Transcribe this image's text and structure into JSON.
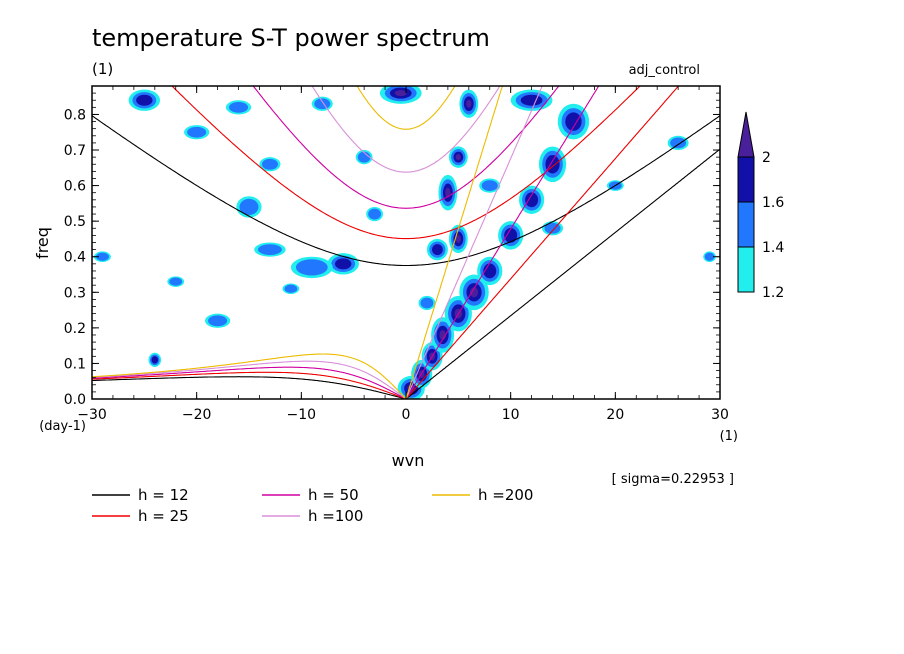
{
  "chart_data": {
    "type": "heatmap",
    "title": "temperature S-T power spectrum",
    "subtitle_left": "(1)",
    "subtitle_right": "adj_control",
    "xlabel": "wvn",
    "ylabel": "freq",
    "x_unit_label": "(1)",
    "y_unit_label": "(day-1)",
    "xlim": [
      -30,
      30
    ],
    "ylim": [
      0,
      0.88
    ],
    "x_ticks": [
      -30,
      -20,
      -10,
      0,
      10,
      20,
      30
    ],
    "x_tick_labels": [
      "−30",
      "−20",
      "−10",
      "0",
      "10",
      "20",
      "30"
    ],
    "y_ticks": [
      0,
      0.1,
      0.2,
      0.3,
      0.4,
      0.5,
      0.6,
      0.7,
      0.8
    ],
    "y_tick_labels": [
      "0.0",
      "0.1",
      "0.2",
      "0.3",
      "0.4",
      "0.5",
      "0.6",
      "0.7",
      "0.8"
    ],
    "sigma_text": "[ sigma=0.22953 ]",
    "colorbar": {
      "levels": [
        1.2,
        1.4,
        1.6,
        2
      ],
      "labels": [
        "1.2",
        "1.4",
        "1.6",
        "2"
      ],
      "colors": [
        "#22eeee",
        "#2277ff",
        "#1111aa",
        "#4a1f9c"
      ]
    },
    "dispersion_curves": [
      {
        "label": "h = 12",
        "h": 12,
        "color": "#000000"
      },
      {
        "label": "h = 25",
        "h": 25,
        "color": "#ee0000"
      },
      {
        "label": "h = 50",
        "h": 50,
        "color": "#d000a0"
      },
      {
        "label": "h =100",
        "h": 100,
        "color": "#d890d8"
      },
      {
        "label": "h =200",
        "h": 200,
        "color": "#eebb00"
      }
    ],
    "signal_regions": [
      {
        "k": 0.5,
        "f": 0.03,
        "rk": 1.3,
        "rf": 0.035,
        "level": 3
      },
      {
        "k": 1.5,
        "f": 0.07,
        "rk": 1.0,
        "rf": 0.04,
        "level": 3
      },
      {
        "k": 2.5,
        "f": 0.12,
        "rk": 1.0,
        "rf": 0.04,
        "level": 3
      },
      {
        "k": 3.5,
        "f": 0.18,
        "rk": 1.1,
        "rf": 0.05,
        "level": 3
      },
      {
        "k": 5.0,
        "f": 0.24,
        "rk": 1.3,
        "rf": 0.05,
        "level": 3
      },
      {
        "k": 6.5,
        "f": 0.3,
        "rk": 1.4,
        "rf": 0.05,
        "level": 3
      },
      {
        "k": 8.0,
        "f": 0.36,
        "rk": 1.2,
        "rf": 0.04,
        "level": 2
      },
      {
        "k": 10.0,
        "f": 0.46,
        "rk": 1.2,
        "rf": 0.04,
        "level": 2
      },
      {
        "k": 12.0,
        "f": 0.56,
        "rk": 1.2,
        "rf": 0.04,
        "level": 2
      },
      {
        "k": 14.0,
        "f": 0.66,
        "rk": 1.3,
        "rf": 0.05,
        "level": 2
      },
      {
        "k": 16.0,
        "f": 0.78,
        "rk": 1.5,
        "rf": 0.05,
        "level": 2
      },
      {
        "k": 5.0,
        "f": 0.45,
        "rk": 0.9,
        "rf": 0.04,
        "level": 3
      },
      {
        "k": 4.0,
        "f": 0.58,
        "rk": 0.9,
        "rf": 0.05,
        "level": 3
      },
      {
        "k": 5.0,
        "f": 0.68,
        "rk": 0.9,
        "rf": 0.03,
        "level": 3
      },
      {
        "k": 6.0,
        "f": 0.83,
        "rk": 0.9,
        "rf": 0.04,
        "level": 3
      },
      {
        "k": -0.5,
        "f": 0.86,
        "rk": 2.0,
        "rf": 0.03,
        "level": 3
      },
      {
        "k": 3.0,
        "f": 0.42,
        "rk": 1.0,
        "rf": 0.03,
        "level": 2
      },
      {
        "k": -6.0,
        "f": 0.38,
        "rk": 1.5,
        "rf": 0.03,
        "level": 2
      },
      {
        "k": -9.0,
        "f": 0.37,
        "rk": 2.0,
        "rf": 0.03,
        "level": 1
      },
      {
        "k": -13.0,
        "f": 0.42,
        "rk": 1.5,
        "rf": 0.02,
        "level": 1
      },
      {
        "k": -15.0,
        "f": 0.54,
        "rk": 1.2,
        "rf": 0.03,
        "level": 1
      },
      {
        "k": -13.0,
        "f": 0.66,
        "rk": 1.0,
        "rf": 0.02,
        "level": 1
      },
      {
        "k": -25.0,
        "f": 0.84,
        "rk": 1.5,
        "rf": 0.03,
        "level": 2
      },
      {
        "k": -20.0,
        "f": 0.75,
        "rk": 1.2,
        "rf": 0.02,
        "level": 1
      },
      {
        "k": -18.0,
        "f": 0.22,
        "rk": 1.2,
        "rf": 0.02,
        "level": 1
      },
      {
        "k": -24.0,
        "f": 0.11,
        "rk": 0.6,
        "rf": 0.02,
        "level": 2
      },
      {
        "k": -29.0,
        "f": 0.4,
        "rk": 0.8,
        "rf": 0.015,
        "level": 1
      },
      {
        "k": -16.0,
        "f": 0.82,
        "rk": 1.2,
        "rf": 0.02,
        "level": 1
      },
      {
        "k": 12.0,
        "f": 0.84,
        "rk": 2.0,
        "rf": 0.03,
        "level": 2
      },
      {
        "k": 8.0,
        "f": 0.6,
        "rk": 1.0,
        "rf": 0.02,
        "level": 1
      },
      {
        "k": 14.0,
        "f": 0.48,
        "rk": 1.0,
        "rf": 0.02,
        "level": 1
      },
      {
        "k": 26.0,
        "f": 0.72,
        "rk": 1.0,
        "rf": 0.02,
        "level": 1
      },
      {
        "k": 29.0,
        "f": 0.4,
        "rk": 0.6,
        "rf": 0.015,
        "level": 1
      },
      {
        "k": -4.0,
        "f": 0.68,
        "rk": 0.8,
        "rf": 0.02,
        "level": 1
      },
      {
        "k": -8.0,
        "f": 0.83,
        "rk": 1.0,
        "rf": 0.02,
        "level": 1
      },
      {
        "k": -22.0,
        "f": 0.33,
        "rk": 0.8,
        "rf": 0.015,
        "level": 1
      },
      {
        "k": 2.0,
        "f": 0.27,
        "rk": 0.8,
        "rf": 0.02,
        "level": 1
      },
      {
        "k": -3.0,
        "f": 0.52,
        "rk": 0.8,
        "rf": 0.02,
        "level": 1
      },
      {
        "k": 20.0,
        "f": 0.6,
        "rk": 0.8,
        "rf": 0.015,
        "level": 1
      },
      {
        "k": -11.0,
        "f": 0.31,
        "rk": 0.8,
        "rf": 0.015,
        "level": 1
      }
    ]
  }
}
